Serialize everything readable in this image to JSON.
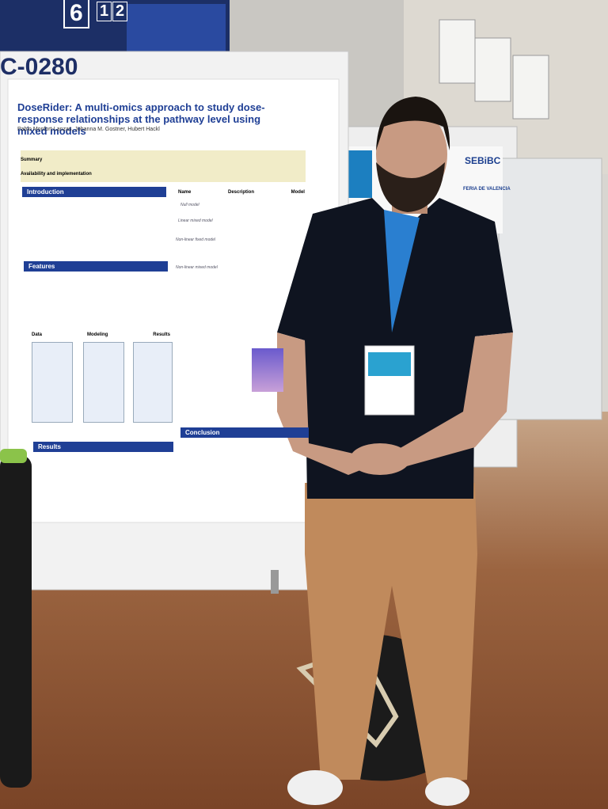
{
  "signage": {
    "hall": "6",
    "row": "1",
    "seat": "2"
  },
  "board_code": "C-0280",
  "poster": {
    "title": "DoseRider: A multi-omics approach to study dose-response relationships at the pathway level using mixed models",
    "authors": "Pablo Monfort-Lanzas, Johanna M. Gostner, Hubert Hackl",
    "summary_label": "Summary",
    "availability_label": "Availability and implementation",
    "sections": [
      "Introduction",
      "Features",
      "Results",
      "Conclusion"
    ],
    "table_headers": [
      "Name",
      "Description",
      "Model"
    ],
    "models": [
      "Null model",
      "Linear mixed model",
      "Non-linear fixed model",
      "Non-linear mixed model"
    ],
    "workflow": [
      "Data",
      "Modeling",
      "Results"
    ]
  },
  "background_poster": {
    "brand": "SEBiBC",
    "venue": "FERIA DE VALENCIA"
  }
}
